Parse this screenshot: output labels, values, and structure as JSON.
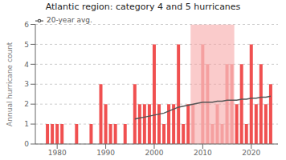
{
  "chart_data": {
    "type": "bar",
    "title": "Atlantic region: category 4 and 5 hurricanes",
    "y_label": "Annual hurricane count",
    "x": [
      1977,
      1978,
      1979,
      1980,
      1981,
      1982,
      1983,
      1984,
      1985,
      1986,
      1987,
      1988,
      1989,
      1990,
      1991,
      1992,
      1993,
      1994,
      1995,
      1996,
      1997,
      1998,
      1999,
      2000,
      2001,
      2002,
      2003,
      2004,
      2005,
      2006,
      2007,
      2008,
      2009,
      2010,
      2011,
      2012,
      2013,
      2014,
      2015,
      2016,
      2017,
      2018,
      2019,
      2020,
      2021,
      2022,
      2023,
      2024
    ],
    "values": [
      0,
      1,
      1,
      1,
      1,
      0,
      0,
      1,
      0,
      0,
      1,
      0,
      3,
      2,
      1,
      1,
      0,
      1,
      0,
      3,
      2,
      2,
      2,
      5,
      2,
      1,
      2,
      2,
      5,
      1,
      2,
      2,
      0,
      5,
      4,
      1,
      2,
      1,
      4,
      4,
      2,
      4,
      1,
      5,
      2,
      4,
      2,
      3
    ],
    "colors": [
      "#f05050",
      "#f05050",
      "#f05050",
      "#f05050",
      "#f05050",
      "#f05050",
      "#f05050",
      "#f05050",
      "#f05050",
      "#f05050",
      "#f05050",
      "#f05050",
      "#f05050",
      "#f05050",
      "#f05050",
      "#f05050",
      "#f05050",
      "#f05050",
      "#f05050",
      "#f05050",
      "#f05050",
      "#f05050",
      "#f05050",
      "#f05050",
      "#f05050",
      "#f05050",
      "#f05050",
      "#f05050",
      "#f05050",
      "#f05050",
      "#f05050",
      "#f5a0a0",
      "#f5a0a0",
      "#f5a0a0",
      "#f5a0a0",
      "#f5a0a0",
      "#f5a0a0",
      "#f5a0a0",
      "#f5a0a0",
      "#f5a0a0",
      "#f05050",
      "#f05050",
      "#f05050",
      "#f05050",
      "#f05050",
      "#f05050",
      "#f05050",
      "#f05050"
    ],
    "series": [
      {
        "name": "20-year avg.",
        "type": "line",
        "color": "#555555",
        "x": [
          1996,
          1997,
          1998,
          1999,
          2000,
          2001,
          2002,
          2003,
          2004,
          2005,
          2006,
          2007,
          2008,
          2009,
          2010,
          2011,
          2012,
          2013,
          2014,
          2015,
          2016,
          2017,
          2018,
          2019,
          2020,
          2021,
          2022,
          2023,
          2024
        ],
        "values": [
          1.25,
          1.3,
          1.35,
          1.4,
          1.45,
          1.5,
          1.55,
          1.65,
          1.75,
          1.85,
          1.9,
          1.95,
          2.0,
          2.05,
          2.1,
          2.1,
          2.1,
          2.15,
          2.15,
          2.2,
          2.2,
          2.2,
          2.25,
          2.25,
          2.3,
          2.3,
          2.35,
          2.35,
          2.4
        ]
      }
    ],
    "highlight": {
      "xmin": 2007.5,
      "xmax": 2016.5,
      "color": "#f5a0a0"
    },
    "xlim": [
      1975.5,
      2025.5
    ],
    "xticks": [
      1980,
      1990,
      2000,
      2010,
      2020
    ],
    "ylim": [
      0,
      6
    ],
    "yticks": [
      0,
      1,
      2,
      3,
      4,
      5,
      6
    ],
    "grid": true,
    "legend": "upper left"
  }
}
